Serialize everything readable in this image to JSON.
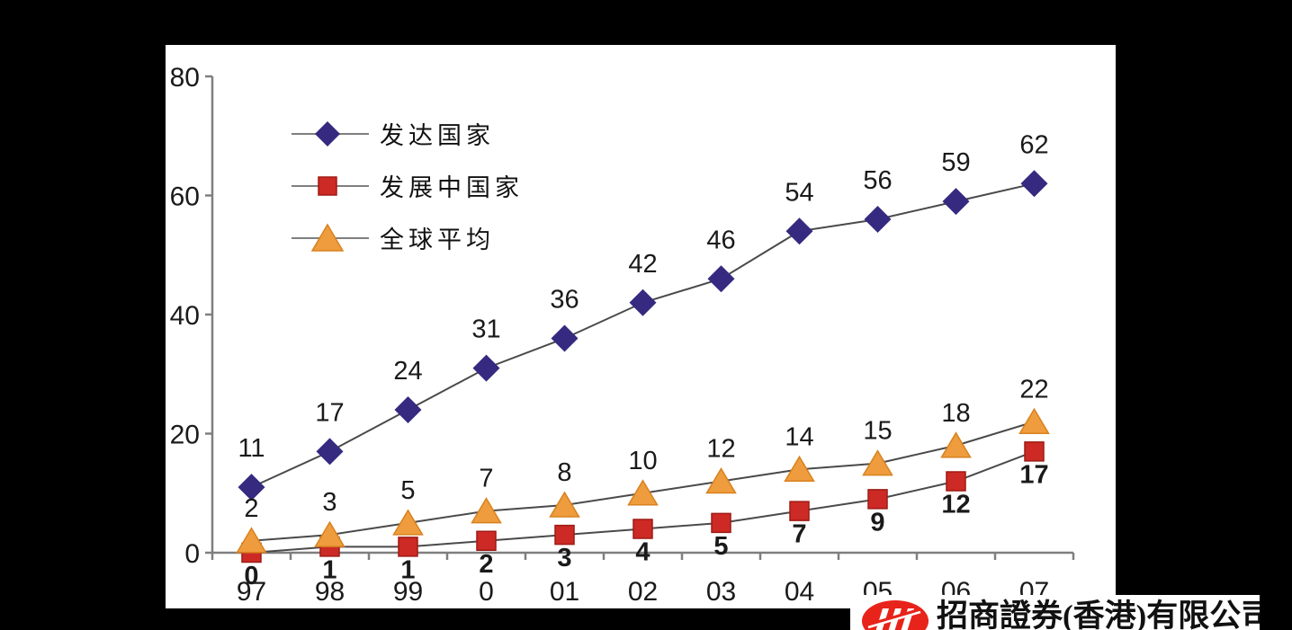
{
  "chart_data": {
    "type": "line",
    "x_labels": [
      "97",
      "98",
      "99",
      "0",
      "01",
      "02",
      "03",
      "04",
      "05",
      "06",
      "07"
    ],
    "y_ticks": [
      "0",
      "20",
      "40",
      "60",
      "80"
    ],
    "ylim": [
      0,
      80
    ],
    "grid": false,
    "legend_position": "upper-left",
    "series": [
      {
        "name": "发达国家",
        "marker": "diamond",
        "color": "#352a80",
        "marker_stroke": "#2a2166",
        "values": [
          11,
          17,
          24,
          31,
          36,
          42,
          46,
          54,
          56,
          59,
          62
        ],
        "label_position": "above",
        "label_weight": "normal"
      },
      {
        "name": "发展中国家",
        "marker": "square",
        "color": "#cd2a25",
        "marker_stroke": "#9e1a14",
        "values": [
          0,
          1,
          1,
          2,
          3,
          4,
          5,
          7,
          9,
          12,
          17
        ],
        "label_position": "below",
        "label_weight": "bold"
      },
      {
        "name": "全球平均",
        "marker": "triangle",
        "color": "#ee9c3d",
        "marker_stroke": "#d8821f",
        "values": [
          2,
          3,
          5,
          7,
          8,
          10,
          12,
          14,
          15,
          18,
          22
        ],
        "label_position": "above",
        "label_weight": "normal"
      }
    ],
    "line_color": "#4a4a4a",
    "axis_color": "#7f7f7f",
    "label_color": "#1a1a1a"
  },
  "logo": {
    "company_name": "招商證券(香港)有限公司",
    "brand_color": "#e8231a"
  }
}
